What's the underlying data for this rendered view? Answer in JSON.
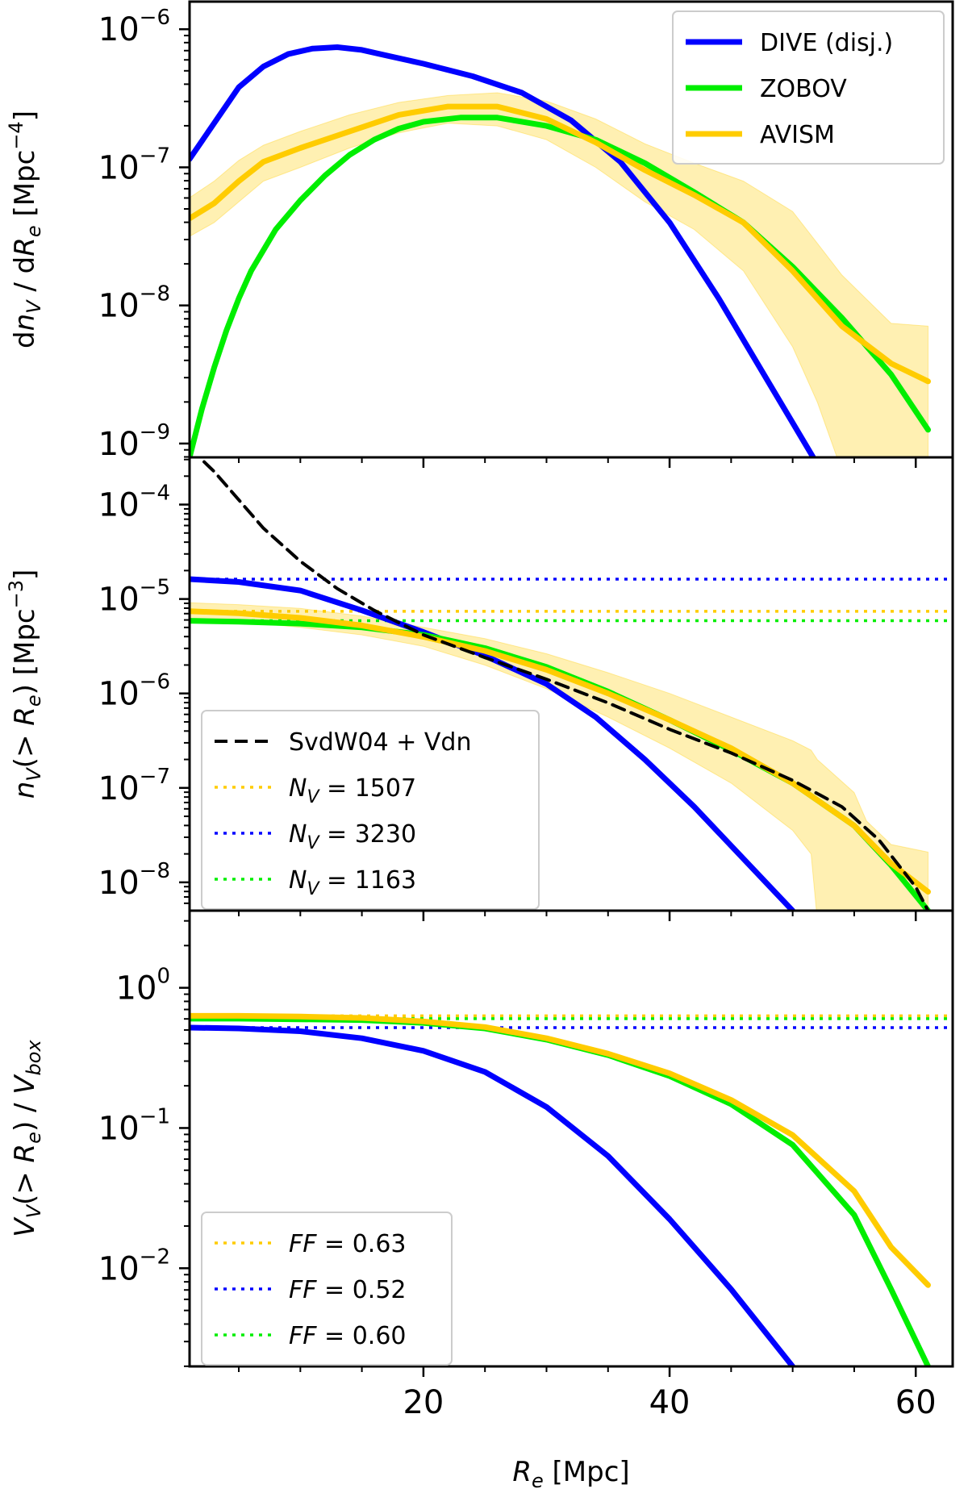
{
  "chart_data": [
    {
      "type": "line",
      "panel": "top",
      "ylabel": {
        "main": "dn",
        "sub": "V",
        "mid": " / dR",
        "sub2": "e",
        "end": " [Mpc",
        "sup": "−4",
        "close": "]"
      },
      "yscale": "log",
      "ylim_exp": [
        -9.1,
        -5.8
      ],
      "yticks": [
        {
          "exp": -6,
          "base": "10",
          "sup": "−6"
        },
        {
          "exp": -7,
          "base": "10",
          "sup": "−7"
        },
        {
          "exp": -8,
          "base": "10",
          "sup": "−8"
        },
        {
          "exp": -9,
          "base": "10",
          "sup": "−9"
        }
      ],
      "legend": {
        "position": "top-right",
        "entries": [
          {
            "label": "DIVE (disj.)",
            "color": "#0000ff",
            "style": "solid"
          },
          {
            "label": "ZOBOV",
            "color": "#00ee00",
            "style": "solid"
          },
          {
            "label": "AVISM",
            "color": "#ffcc00",
            "style": "solid"
          }
        ]
      },
      "series": [
        {
          "name": "DIVE (disj.)",
          "color": "#0000ff",
          "x": [
            1,
            3,
            5,
            7,
            9,
            11,
            13,
            15,
            17,
            20,
            24,
            28,
            32,
            36,
            40,
            44,
            48,
            52
          ],
          "log10y": [
            -6.94,
            -6.68,
            -6.42,
            -6.27,
            -6.18,
            -6.14,
            -6.13,
            -6.15,
            -6.19,
            -6.25,
            -6.34,
            -6.46,
            -6.66,
            -6.96,
            -7.4,
            -7.95,
            -8.55,
            -9.15
          ]
        },
        {
          "name": "ZOBOV",
          "color": "#00ee00",
          "x": [
            1,
            2,
            3,
            4,
            5,
            6,
            8,
            10,
            12,
            14,
            16,
            18,
            20,
            23,
            26,
            30,
            34,
            38,
            42,
            46,
            50,
            54,
            58,
            61
          ],
          "log10y": [
            -9.1,
            -8.75,
            -8.45,
            -8.18,
            -7.95,
            -7.75,
            -7.45,
            -7.24,
            -7.06,
            -6.91,
            -6.8,
            -6.72,
            -6.67,
            -6.64,
            -6.64,
            -6.7,
            -6.8,
            -6.97,
            -7.18,
            -7.4,
            -7.72,
            -8.09,
            -8.5,
            -8.9
          ]
        },
        {
          "name": "AVISM",
          "color": "#ffcc00",
          "x": [
            1,
            3,
            5,
            7,
            10,
            14,
            18,
            22,
            26,
            30,
            34,
            38,
            42,
            46,
            50,
            54,
            58,
            61
          ],
          "log10y": [
            -7.37,
            -7.26,
            -7.1,
            -6.96,
            -6.86,
            -6.74,
            -6.62,
            -6.56,
            -6.56,
            -6.65,
            -6.82,
            -7.02,
            -7.2,
            -7.4,
            -7.75,
            -8.15,
            -8.42,
            -8.55
          ],
          "band_x": [
            1,
            3,
            5,
            7,
            10,
            14,
            18,
            22,
            26,
            30,
            34,
            38,
            42,
            46,
            50,
            52,
            54,
            58,
            61
          ],
          "band_lo": [
            -7.5,
            -7.4,
            -7.25,
            -7.1,
            -7.0,
            -6.86,
            -6.75,
            -6.68,
            -6.7,
            -6.8,
            -7.0,
            -7.25,
            -7.45,
            -7.75,
            -8.3,
            -8.7,
            -9.2,
            -9.2,
            -9.2
          ],
          "band_hi": [
            -7.22,
            -7.1,
            -6.95,
            -6.84,
            -6.74,
            -6.62,
            -6.53,
            -6.48,
            -6.46,
            -6.52,
            -6.65,
            -6.83,
            -6.97,
            -7.1,
            -7.32,
            -7.55,
            -7.78,
            -8.13,
            -8.15
          ]
        }
      ]
    },
    {
      "type": "line",
      "panel": "middle",
      "ylabel": {
        "main": "n",
        "sub": "V",
        "mid": "(> R",
        "sub2": "e",
        "end": ")  [Mpc",
        "sup": "−3",
        "close": "]"
      },
      "yscale": "log",
      "ylim_exp": [
        -8.3,
        -3.5
      ],
      "yticks": [
        {
          "exp": -4,
          "base": "10",
          "sup": "−4"
        },
        {
          "exp": -5,
          "base": "10",
          "sup": "−5"
        },
        {
          "exp": -6,
          "base": "10",
          "sup": "−6"
        },
        {
          "exp": -7,
          "base": "10",
          "sup": "−7"
        },
        {
          "exp": -8,
          "base": "10",
          "sup": "−8"
        }
      ],
      "legend": {
        "position": "bottom-left",
        "entries": [
          {
            "label": "SvdW04 + Vdn",
            "color": "#000000",
            "style": "dashed"
          },
          {
            "label_prefix": "N",
            "label_sub": "V",
            "label_value": " = 1507",
            "color": "#ffcc00",
            "style": "dotted"
          },
          {
            "label_prefix": "N",
            "label_sub": "V",
            "label_value": " = 3230",
            "color": "#0000ff",
            "style": "dotted"
          },
          {
            "label_prefix": "N",
            "label_sub": "V",
            "label_value": " = 1163",
            "color": "#00ee00",
            "style": "dotted"
          }
        ]
      },
      "hlines": [
        {
          "log10y": -4.79,
          "color": "#0000ff"
        },
        {
          "log10y": -5.13,
          "color": "#ffcc00"
        },
        {
          "log10y": -5.23,
          "color": "#00ee00"
        }
      ],
      "series": [
        {
          "name": "SvdW04 + Vdn",
          "color": "#000000",
          "style": "dashed",
          "x": [
            1,
            3,
            5,
            7,
            10,
            13,
            16,
            20,
            25,
            30,
            35,
            40,
            45,
            50,
            54,
            57,
            60,
            61
          ],
          "log10y": [
            -3.4,
            -3.65,
            -3.95,
            -4.25,
            -4.6,
            -4.89,
            -5.12,
            -5.38,
            -5.62,
            -5.85,
            -6.1,
            -6.38,
            -6.63,
            -6.92,
            -7.2,
            -7.55,
            -8.05,
            -8.3
          ]
        },
        {
          "name": "DIVE (disj.)",
          "color": "#0000ff",
          "x": [
            1,
            5,
            10,
            15,
            20,
            25,
            30,
            34,
            38,
            42,
            46,
            50
          ],
          "log10y": [
            -4.79,
            -4.82,
            -4.91,
            -5.12,
            -5.35,
            -5.6,
            -5.9,
            -6.25,
            -6.7,
            -7.2,
            -7.75,
            -8.3
          ]
        },
        {
          "name": "ZOBOV",
          "color": "#00ee00",
          "x": [
            1,
            5,
            10,
            15,
            20,
            25,
            30,
            35,
            40,
            45,
            50,
            55,
            58,
            61
          ],
          "log10y": [
            -5.23,
            -5.24,
            -5.26,
            -5.3,
            -5.38,
            -5.52,
            -5.72,
            -5.98,
            -6.28,
            -6.6,
            -6.95,
            -7.4,
            -7.82,
            -8.3
          ]
        },
        {
          "name": "AVISM",
          "color": "#ffcc00",
          "x": [
            1,
            5,
            10,
            15,
            20,
            25,
            30,
            35,
            40,
            45,
            50,
            55,
            58,
            61
          ],
          "log10y": [
            -5.13,
            -5.15,
            -5.2,
            -5.28,
            -5.4,
            -5.55,
            -5.75,
            -6.0,
            -6.28,
            -6.58,
            -6.95,
            -7.4,
            -7.8,
            -8.1
          ],
          "band_x": [
            1,
            5,
            10,
            15,
            20,
            25,
            30,
            35,
            40,
            45,
            50,
            51.5,
            52,
            55,
            56,
            58,
            61
          ],
          "band_lo": [
            -5.22,
            -5.24,
            -5.3,
            -5.38,
            -5.5,
            -5.7,
            -5.95,
            -6.25,
            -6.58,
            -6.95,
            -7.45,
            -7.7,
            -8.4,
            -8.4,
            -8.4,
            -8.4,
            -8.4
          ],
          "band_hi": [
            -5.04,
            -5.06,
            -5.1,
            -5.18,
            -5.3,
            -5.42,
            -5.58,
            -5.78,
            -6.0,
            -6.25,
            -6.5,
            -6.6,
            -6.7,
            -7.05,
            -7.35,
            -7.6,
            -7.68
          ]
        }
      ]
    },
    {
      "type": "line",
      "panel": "bottom",
      "ylabel": {
        "main": "V",
        "sub": "V",
        "mid": "(> R",
        "sub2": "e",
        "end": ") / V",
        "sub3": "box"
      },
      "yscale": "log",
      "ylim_exp": [
        -2.7,
        0.55
      ],
      "yticks": [
        {
          "exp": 0,
          "base": "10",
          "sup": "0"
        },
        {
          "exp": -1,
          "base": "10",
          "sup": "−1"
        },
        {
          "exp": -2,
          "base": "10",
          "sup": "−2"
        }
      ],
      "xlabel": {
        "main": "R",
        "sub": "e",
        "end": " [Mpc]"
      },
      "xlim": [
        1,
        63
      ],
      "xticks": [
        20,
        40,
        60
      ],
      "legend": {
        "position": "bottom-left",
        "entries": [
          {
            "label_prefix": "FF",
            "label_value": " = 0.63",
            "color": "#ffcc00",
            "style": "dotted"
          },
          {
            "label_prefix": "FF",
            "label_value": " = 0.52",
            "color": "#0000ff",
            "style": "dotted"
          },
          {
            "label_prefix": "FF",
            "label_value": " = 0.60",
            "color": "#00ee00",
            "style": "dotted"
          }
        ]
      },
      "hlines": [
        {
          "log10y": -0.2,
          "color": "#ffcc00"
        },
        {
          "log10y": -0.22,
          "color": "#00ee00"
        },
        {
          "log10y": -0.284,
          "color": "#0000ff"
        }
      ],
      "series": [
        {
          "name": "DIVE (disj.)",
          "color": "#0000ff",
          "x": [
            1,
            5,
            10,
            15,
            20,
            25,
            30,
            35,
            40,
            45,
            50
          ],
          "log10y": [
            -0.284,
            -0.29,
            -0.31,
            -0.36,
            -0.45,
            -0.6,
            -0.85,
            -1.2,
            -1.65,
            -2.15,
            -2.7
          ]
        },
        {
          "name": "ZOBOV",
          "color": "#00ee00",
          "x": [
            1,
            5,
            10,
            15,
            20,
            25,
            30,
            35,
            40,
            45,
            50,
            55,
            58,
            61
          ],
          "log10y": [
            -0.22,
            -0.22,
            -0.225,
            -0.23,
            -0.25,
            -0.29,
            -0.37,
            -0.48,
            -0.63,
            -0.83,
            -1.12,
            -1.62,
            -2.15,
            -2.7
          ]
        },
        {
          "name": "AVISM",
          "color": "#ffcc00",
          "x": [
            1,
            5,
            10,
            15,
            20,
            25,
            30,
            35,
            40,
            45,
            50,
            55,
            58,
            61
          ],
          "log10y": [
            -0.2,
            -0.2,
            -0.205,
            -0.215,
            -0.24,
            -0.28,
            -0.36,
            -0.47,
            -0.61,
            -0.8,
            -1.05,
            -1.45,
            -1.85,
            -2.12
          ]
        }
      ]
    }
  ]
}
